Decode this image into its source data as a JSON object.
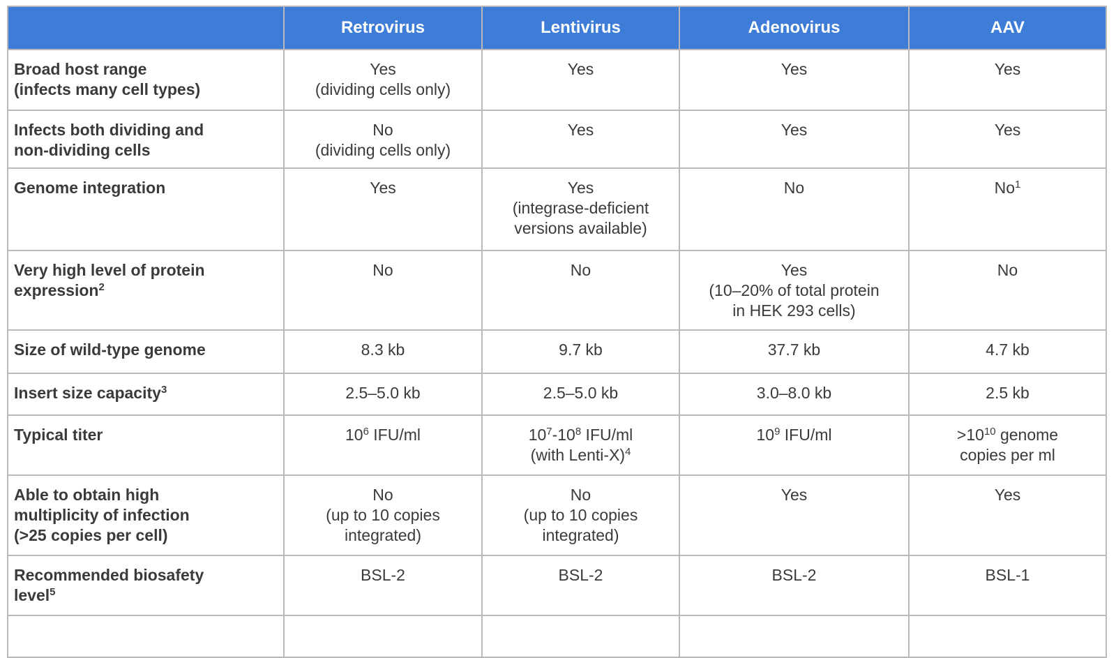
{
  "colors": {
    "header_bg": "#3d7dd8",
    "header_text": "#ffffff",
    "body_text": "#3a3a3a",
    "border": "#b9b9b9"
  },
  "table": {
    "columns": [
      "",
      "Retrovirus",
      "Lentivirus",
      "Adenovirus",
      "AAV"
    ],
    "rows": [
      {
        "label": "Broad host range\n(infects many cell types)",
        "cells": [
          "Yes\n(dividing cells only)",
          "Yes",
          "Yes",
          "Yes"
        ]
      },
      {
        "label": "Infects both dividing and\nnon-dividing cells",
        "cells": [
          "No\n(dividing cells only)",
          "Yes",
          "Yes",
          "Yes"
        ]
      },
      {
        "label": "Genome integration",
        "cells": [
          "Yes",
          "Yes\n(integrase-deficient\nversions available)",
          "No",
          "No^{1}"
        ]
      },
      {
        "label": "Very high level of protein\nexpression^{2}",
        "cells": [
          "No",
          "No",
          "Yes\n(10–20% of total protein\nin HEK 293 cells)",
          "No"
        ]
      },
      {
        "label": "Size of wild-type genome",
        "cells": [
          "8.3 kb",
          "9.7 kb",
          "37.7 kb",
          "4.7 kb"
        ]
      },
      {
        "label": "Insert size capacity^{3}",
        "cells": [
          "2.5–5.0 kb",
          "2.5–5.0 kb",
          "3.0–8.0 kb",
          "2.5 kb"
        ]
      },
      {
        "label": "Typical titer",
        "cells": [
          "10^{6} IFU/ml",
          "10^{7}-10^{8} IFU/ml\n(with Lenti-X)^{4}",
          "10^{9} IFU/ml",
          ">10^{10} genome\ncopies per ml"
        ]
      },
      {
        "label": "Able to obtain high\nmultiplicity of infection\n(>25 copies per cell)",
        "cells": [
          "No\n(up to 10 copies\nintegrated)",
          "No\n(up to 10 copies\nintegrated)",
          "Yes",
          "Yes"
        ]
      },
      {
        "label": "Recommended biosafety\nlevel^{5}",
        "cells": [
          "BSL-2",
          "BSL-2",
          "BSL-2",
          "BSL-1"
        ]
      },
      {
        "label": "",
        "cells": [
          "",
          "",
          "",
          ""
        ]
      }
    ]
  }
}
